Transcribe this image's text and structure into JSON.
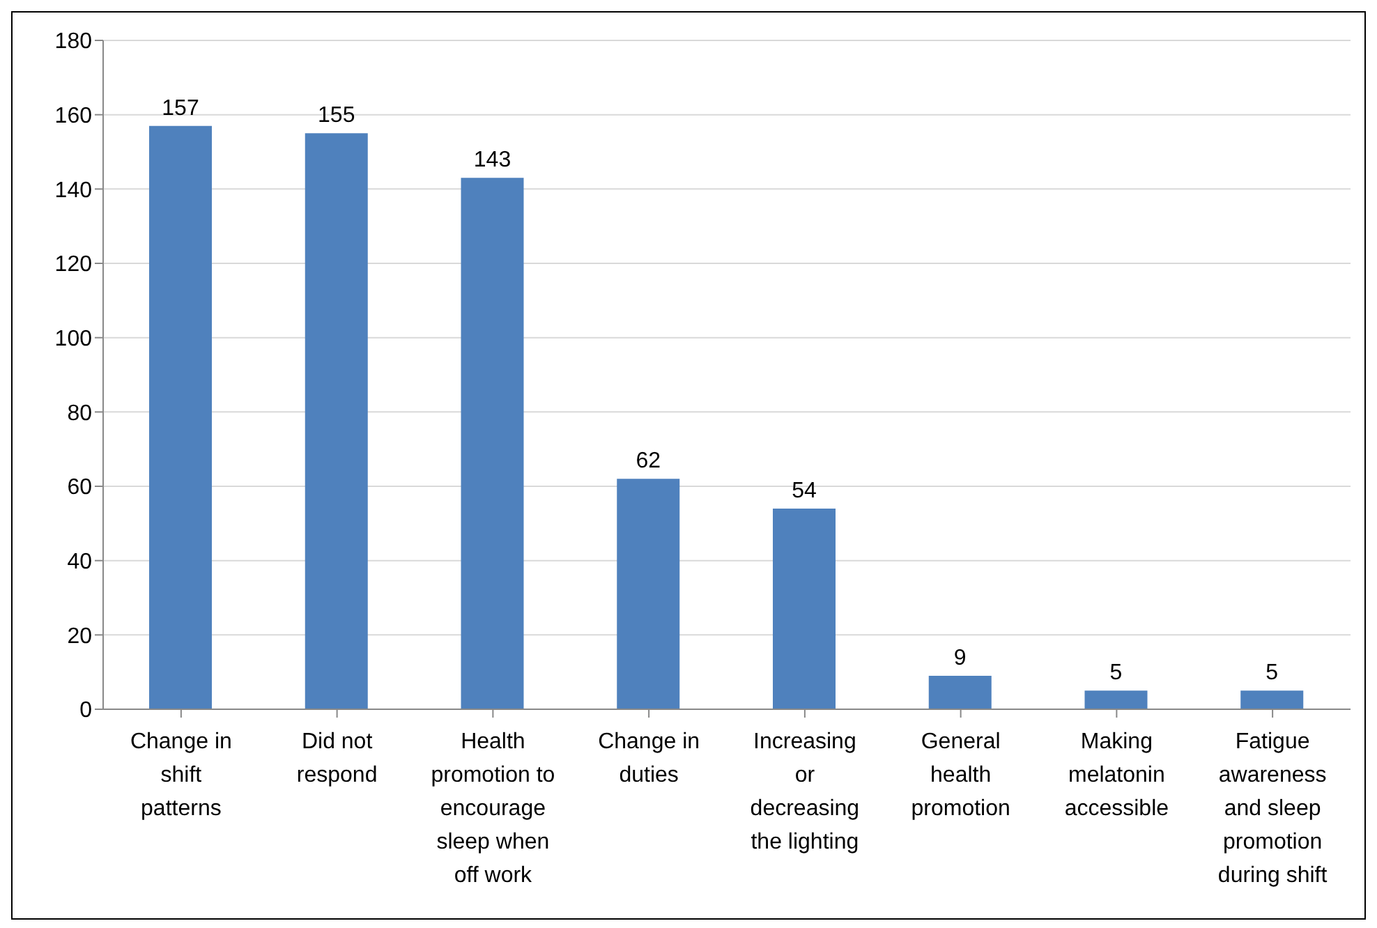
{
  "chart_data": {
    "type": "bar",
    "categories": [
      "Change in shift patterns",
      "Did not respond",
      "Health promotion to encourage sleep when off work",
      "Change in duties",
      "Increasing or decreasing the lighting",
      "General health promotion",
      "Making melatonin accessible",
      "Fatigue awareness and sleep promotion during shift"
    ],
    "values": [
      157,
      155,
      143,
      62,
      54,
      9,
      5,
      5
    ],
    "color": "#4f81bd",
    "ylim": [
      0,
      180
    ],
    "yticks": [
      0,
      20,
      40,
      60,
      80,
      100,
      120,
      140,
      160,
      180
    ],
    "grid": "y",
    "data_labels": true
  }
}
